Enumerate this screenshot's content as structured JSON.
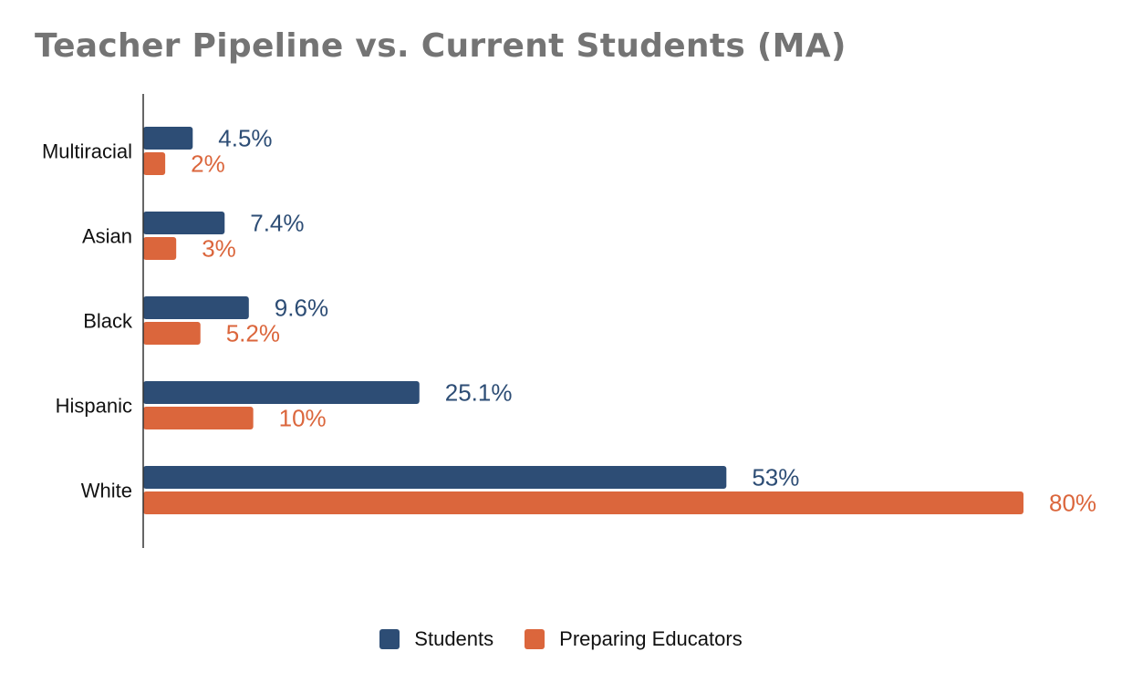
{
  "chart_data": {
    "type": "bar",
    "orientation": "horizontal",
    "title": "Teacher Pipeline vs. Current Students (MA)",
    "categories": [
      "Multiracial",
      "Asian",
      "Black",
      "Hispanic",
      "White"
    ],
    "series": [
      {
        "name": "Students",
        "color": "#2d4d75",
        "values": [
          4.5,
          7.4,
          9.6,
          25.1,
          53
        ],
        "labels": [
          "4.5%",
          "7.4%",
          "9.6%",
          "25.1%",
          "53%"
        ]
      },
      {
        "name": "Preparing Educators",
        "color": "#db663c",
        "values": [
          2,
          3,
          5.2,
          10,
          80
        ],
        "labels": [
          "2%",
          "3%",
          "5.2%",
          "10%",
          "80%"
        ]
      }
    ],
    "xlim": [
      0,
      80
    ],
    "grid": false,
    "legend_position": "bottom"
  }
}
